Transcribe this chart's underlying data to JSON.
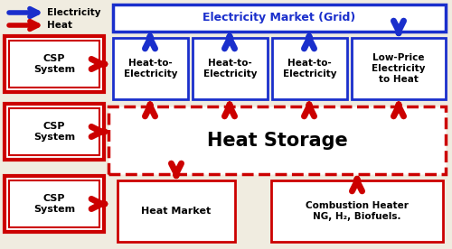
{
  "fig_width": 5.0,
  "fig_height": 2.76,
  "dpi": 100,
  "bg_color": "#f0ece0",
  "blue_color": "#1a2fcc",
  "red_color": "#cc0000",
  "elec_market_text": "Electricity Market (Grid)",
  "heat_storage_text": "Heat Storage",
  "csp_text": "CSP\nSystem",
  "heat_to_elec_text": "Heat-to-\nElectricity",
  "low_price_text": "Low-Price\nElectricity\nto Heat",
  "heat_market_text": "Heat Market",
  "combustion_text": "Combustion Heater\nNG, H₂, Biofuels.",
  "legend_elec": "Electricity",
  "legend_heat": "Heat",
  "xlim": [
    0,
    500
  ],
  "ylim": [
    0,
    276
  ]
}
